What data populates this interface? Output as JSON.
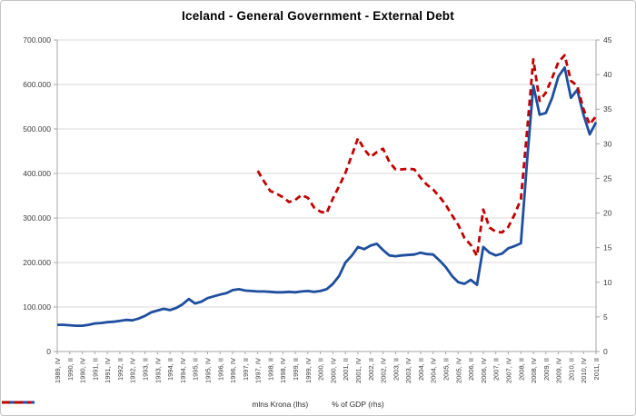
{
  "title": "Iceland - General Government - External Debt",
  "colors": {
    "krona_line": "#1f4e9e",
    "gdp_line": "#c00000",
    "gridline": "#d9d9d9",
    "axis_line": "#a6a6a6",
    "tick_text": "#3b3b3b",
    "frame_border": "#c6c6c6"
  },
  "chart_data": {
    "type": "line",
    "title": "Iceland - General Government - External Debt",
    "grid": "horizontal",
    "legend_position": "bottom",
    "x_labels": [
      "1989, IV",
      "1990, II",
      "1990, IV",
      "1991, II",
      "1991, IV",
      "1992, II",
      "1992, IV",
      "1993, II",
      "1993, IV",
      "1994, II",
      "1994, IV",
      "1995, II",
      "1995, IV",
      "1996, II",
      "1996, IV",
      "1997, II",
      "1997, IV",
      "1998, II",
      "1998, IV",
      "1999, II",
      "1999, IV",
      "2000, II",
      "2000, IV",
      "2001, II",
      "2001, IV",
      "2002, II",
      "2002, IV",
      "2003, II",
      "2003, IV",
      "2004, II",
      "2004, IV",
      "2005, II",
      "2005, IV",
      "2006, II",
      "2006, IV",
      "2007, II",
      "2007, IV",
      "2008, II",
      "2008, IV",
      "2009, II",
      "2009, IV",
      "2010, II",
      "2010, IV",
      "2011, II"
    ],
    "x_label_step_quarters": 2,
    "total_quarters": 87,
    "left_axis": {
      "min": 0,
      "max": 700000,
      "tick_labels": [
        "0",
        "100.000",
        "200.000",
        "300.000",
        "400.000",
        "500.000",
        "600.000",
        "700.000"
      ]
    },
    "right_axis": {
      "min": 0,
      "max": 45,
      "tick_labels": [
        "0",
        "5",
        "10",
        "15",
        "20",
        "25",
        "30",
        "35",
        "40",
        "45"
      ]
    },
    "series": [
      {
        "name": "mlns Krona (lhs)",
        "axis": "left",
        "style": "solid",
        "color": "#1f4e9e",
        "start_index": 0,
        "values": [
          60000,
          60000,
          59000,
          58000,
          58000,
          60000,
          63000,
          64000,
          66000,
          67000,
          69000,
          71000,
          70000,
          74000,
          80000,
          88000,
          92000,
          96000,
          93000,
          98000,
          106000,
          118000,
          108000,
          112000,
          120000,
          124000,
          128000,
          131000,
          138000,
          140000,
          137000,
          136000,
          135000,
          135000,
          134000,
          133000,
          133000,
          134000,
          133000,
          135000,
          136000,
          134000,
          136000,
          140000,
          152000,
          170000,
          200000,
          215000,
          235000,
          230000,
          238000,
          242000,
          228000,
          216000,
          214000,
          216000,
          217000,
          218000,
          222000,
          219000,
          218000,
          205000,
          190000,
          170000,
          156000,
          152000,
          161000,
          150000,
          235000,
          222000,
          216000,
          220000,
          232000,
          237000,
          243000,
          430000,
          598000,
          532000,
          536000,
          570000,
          618000,
          638000,
          570000,
          588000,
          532000,
          488000,
          515000
        ]
      },
      {
        "name": "% of GDP (rhs)",
        "axis": "right",
        "style": "dashed",
        "color": "#c00000",
        "start_index": 32,
        "values": [
          26.1,
          24.6,
          23.2,
          22.8,
          22.3,
          21.6,
          21.9,
          22.6,
          22.2,
          20.8,
          20.2,
          20.0,
          22.1,
          23.9,
          25.8,
          28.3,
          30.8,
          29.2,
          28.1,
          28.8,
          29.3,
          27.4,
          26.3,
          26.3,
          26.4,
          26.3,
          25.1,
          24.1,
          23.4,
          22.4,
          21.2,
          19.7,
          18.3,
          16.4,
          15.4,
          13.8,
          20.5,
          17.9,
          17.3,
          17.2,
          18.0,
          19.8,
          22.0,
          32.0,
          42.2,
          36.2,
          37.4,
          39.5,
          41.8,
          42.8,
          39.1,
          38.4,
          35.0,
          32.8,
          34.0
        ]
      }
    ]
  }
}
